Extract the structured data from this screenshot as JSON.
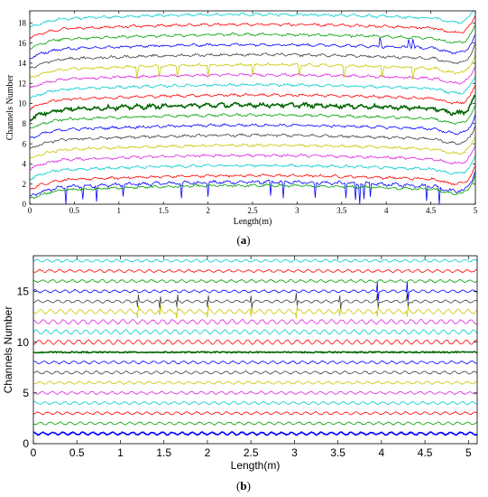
{
  "chart_data": [
    {
      "type": "line",
      "panel_label_open": "(",
      "panel_label_letter": "a",
      "panel_label_close": ")",
      "xlabel": "Length(m)",
      "ylabel": "Channels Number",
      "xlim": [
        0,
        5
      ],
      "ylim": [
        0,
        19.2
      ],
      "xticks": [
        "0",
        "0.5",
        "1",
        "1.5",
        "2",
        "2.5",
        "3",
        "3.5",
        "4",
        "4.5",
        "5"
      ],
      "yticks": [
        "0",
        "2",
        "4",
        "6",
        "8",
        "10",
        "12",
        "14",
        "16",
        "18"
      ],
      "grid": false,
      "legend": "none",
      "series_description": "19 channel traces, each a wavy line offset at its channel number from 1 to 19; channel traces rise near both ends of the fiber",
      "channels": [
        1,
        2,
        3,
        4,
        5,
        6,
        7,
        8,
        9,
        10,
        11,
        12,
        13,
        14,
        15,
        16,
        17,
        18,
        19
      ],
      "channel_colors": [
        "#0000ff",
        "#00a000",
        "#ff0000",
        "#00cccc",
        "#e020e0",
        "#c8c800",
        "#404040",
        "#0000ff",
        "#00a000",
        "#006600",
        "#ff0000",
        "#00cccc",
        "#e020e0",
        "#c8c800",
        "#404040",
        "#0000ff",
        "#00a000",
        "#ff0000",
        "#00cccc"
      ],
      "dips_channel_1_x": [
        0.4,
        0.6,
        0.75,
        1.05,
        1.7,
        2.0,
        2.7,
        2.85,
        3.2,
        3.55,
        3.65,
        3.7,
        3.75,
        3.82,
        4.45,
        4.6
      ],
      "dips_channel_14_x": [
        1.2,
        1.45,
        1.65,
        2.0,
        2.5,
        3.02,
        3.52,
        3.95,
        4.3
      ],
      "peaks_channel_16_x": [
        3.93,
        4.25,
        4.3
      ]
    },
    {
      "type": "line",
      "panel_label_open": "(",
      "panel_label_letter": "b",
      "panel_label_close": ")",
      "xlabel": "Length(m)",
      "ylabel": "Channels Number",
      "xlim": [
        0,
        5.1
      ],
      "ylim": [
        0,
        18.5
      ],
      "xticks": [
        "0",
        "0.5",
        "1",
        "1.5",
        "2",
        "2.5",
        "3",
        "3.5",
        "4",
        "4.5",
        "5"
      ],
      "yticks": [
        "0",
        "5",
        "10",
        "15"
      ],
      "grid": false,
      "legend": "none",
      "channels": [
        1,
        2,
        3,
        4,
        5,
        6,
        7,
        8,
        9,
        10,
        11,
        12,
        13,
        14,
        15,
        16,
        17,
        18
      ],
      "channel_colors": [
        "#0000ff",
        "#00a000",
        "#ff0000",
        "#00cccc",
        "#e020e0",
        "#c8c800",
        "#404040",
        "#0000ff",
        "#006600",
        "#ff0000",
        "#00cccc",
        "#e020e0",
        "#c8c800",
        "#404040",
        "#0000ff",
        "#00a000",
        "#ff0000",
        "#00cccc"
      ],
      "events_x": [
        1.2,
        1.45,
        1.65,
        2.0,
        2.5,
        3.02,
        3.52,
        3.95,
        4.3
      ],
      "event_channels": [
        13,
        14,
        15
      ]
    }
  ]
}
